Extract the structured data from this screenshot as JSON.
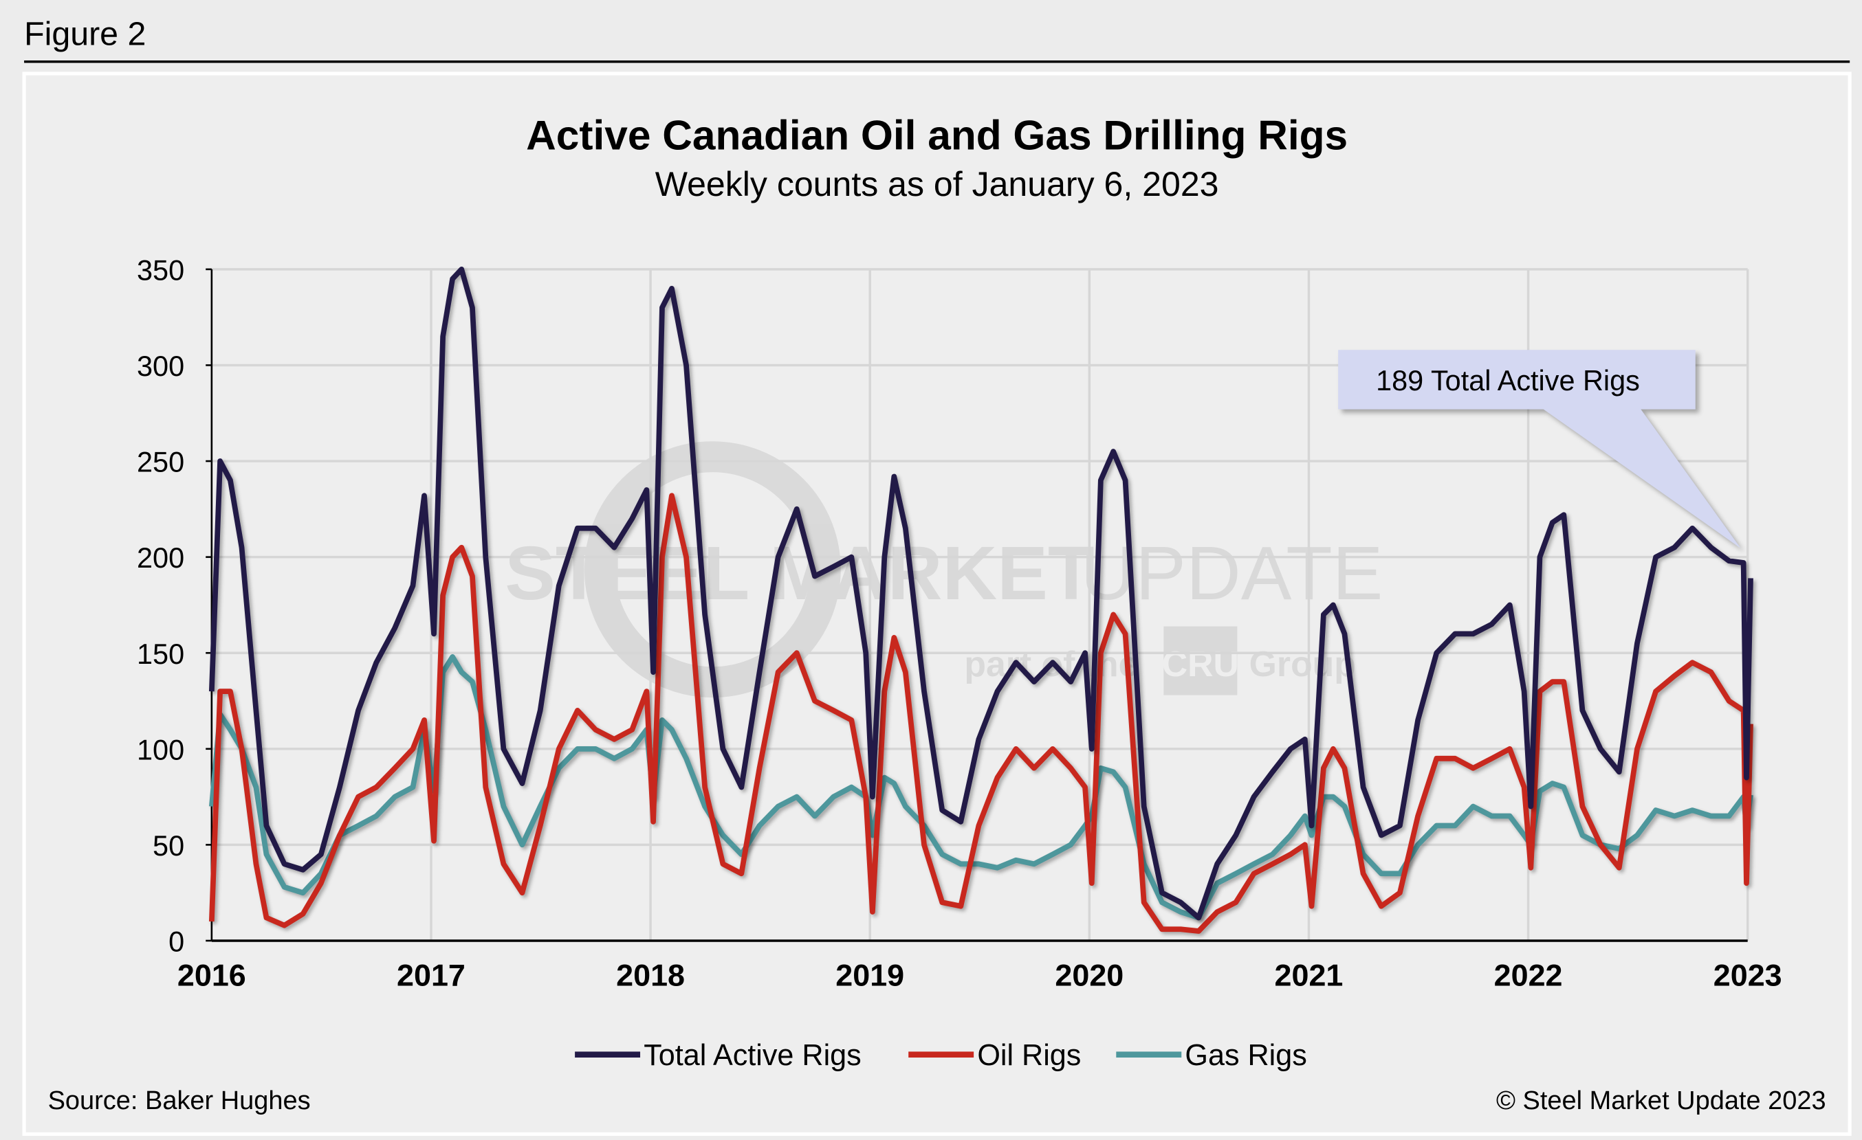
{
  "figure_label": "Figure 2",
  "source": "Source: Baker Hughes",
  "copyright": "© Steel Market Update 2023",
  "watermark": {
    "line1_bold": "STEEL MARKET",
    "line1_light": "UPDATE",
    "line2": "part of the",
    "badge": "CRU",
    "line2_end": "Group"
  },
  "chart_data": {
    "type": "line",
    "title": "Active Canadian Oil and Gas Drilling Rigs",
    "subtitle": "Weekly counts as of January 6, 2023",
    "xlabel": "",
    "ylabel": "",
    "ylim": [
      0,
      350
    ],
    "yticks": [
      "0",
      "50",
      "100",
      "150",
      "200",
      "250",
      "300",
      "350"
    ],
    "xlim": [
      "2016-01-01",
      "2023-01-06"
    ],
    "xticks": [
      "2016",
      "2017",
      "2018",
      "2019",
      "2020",
      "2021",
      "2022",
      "2023"
    ],
    "grid": true,
    "legend_position": "bottom",
    "annotation": "189 Total Active Rigs",
    "x": [
      "2016-01-01",
      "2016-01-15",
      "2016-02-01",
      "2016-02-20",
      "2016-03-15",
      "2016-04-01",
      "2016-05-01",
      "2016-06-01",
      "2016-07-01",
      "2016-08-01",
      "2016-09-01",
      "2016-10-01",
      "2016-11-01",
      "2016-12-01",
      "2016-12-20",
      "2017-01-05",
      "2017-01-20",
      "2017-02-05",
      "2017-02-20",
      "2017-03-10",
      "2017-04-01",
      "2017-05-01",
      "2017-06-01",
      "2017-07-01",
      "2017-08-01",
      "2017-09-01",
      "2017-10-01",
      "2017-11-01",
      "2017-12-01",
      "2017-12-25",
      "2018-01-05",
      "2018-01-20",
      "2018-02-05",
      "2018-03-01",
      "2018-04-01",
      "2018-05-01",
      "2018-06-01",
      "2018-07-01",
      "2018-08-01",
      "2018-09-01",
      "2018-10-01",
      "2018-11-01",
      "2018-12-01",
      "2018-12-25",
      "2019-01-05",
      "2019-01-25",
      "2019-02-10",
      "2019-03-01",
      "2019-04-01",
      "2019-05-01",
      "2019-06-01",
      "2019-07-01",
      "2019-08-01",
      "2019-09-01",
      "2019-10-01",
      "2019-11-01",
      "2019-12-01",
      "2019-12-25",
      "2020-01-05",
      "2020-01-20",
      "2020-02-10",
      "2020-03-01",
      "2020-04-01",
      "2020-05-01",
      "2020-06-01",
      "2020-07-01",
      "2020-08-01",
      "2020-09-01",
      "2020-10-01",
      "2020-11-01",
      "2020-12-01",
      "2020-12-25",
      "2021-01-05",
      "2021-01-25",
      "2021-02-10",
      "2021-03-01",
      "2021-04-01",
      "2021-05-01",
      "2021-06-01",
      "2021-07-01",
      "2021-08-01",
      "2021-09-01",
      "2021-10-01",
      "2021-11-01",
      "2021-12-01",
      "2021-12-25",
      "2022-01-05",
      "2022-01-20",
      "2022-02-10",
      "2022-03-01",
      "2022-04-01",
      "2022-05-01",
      "2022-06-01",
      "2022-07-01",
      "2022-08-01",
      "2022-09-01",
      "2022-10-01",
      "2022-11-01",
      "2022-12-01",
      "2022-12-25",
      "2022-12-30",
      "2023-01-06"
    ],
    "series": [
      {
        "name": "Total Active Rigs",
        "color": "#221a47",
        "values": [
          130,
          250,
          240,
          205,
          120,
          60,
          40,
          37,
          45,
          80,
          120,
          145,
          163,
          185,
          232,
          160,
          315,
          345,
          350,
          330,
          200,
          100,
          82,
          120,
          185,
          215,
          215,
          205,
          220,
          235,
          140,
          330,
          340,
          300,
          170,
          100,
          80,
          140,
          200,
          225,
          190,
          195,
          200,
          150,
          75,
          200,
          242,
          215,
          130,
          68,
          62,
          105,
          130,
          145,
          135,
          145,
          135,
          150,
          100,
          240,
          255,
          240,
          70,
          25,
          20,
          12,
          40,
          55,
          75,
          88,
          100,
          105,
          60,
          170,
          175,
          160,
          80,
          55,
          60,
          115,
          150,
          160,
          160,
          165,
          175,
          130,
          70,
          200,
          218,
          222,
          120,
          100,
          88,
          155,
          200,
          205,
          215,
          205,
          198,
          197,
          85,
          189
        ]
      },
      {
        "name": "Oil Rigs",
        "color": "#c8281e",
        "values": [
          10,
          130,
          130,
          100,
          40,
          12,
          8,
          14,
          30,
          55,
          75,
          80,
          90,
          100,
          115,
          52,
          180,
          200,
          205,
          190,
          80,
          40,
          25,
          60,
          100,
          120,
          110,
          105,
          110,
          130,
          62,
          200,
          232,
          200,
          80,
          40,
          35,
          90,
          140,
          150,
          125,
          120,
          115,
          75,
          15,
          130,
          158,
          140,
          50,
          20,
          18,
          60,
          85,
          100,
          90,
          100,
          90,
          80,
          30,
          150,
          170,
          160,
          20,
          6,
          6,
          5,
          15,
          20,
          35,
          40,
          45,
          50,
          18,
          90,
          100,
          90,
          35,
          18,
          25,
          65,
          95,
          95,
          90,
          95,
          100,
          80,
          38,
          130,
          135,
          135,
          70,
          50,
          38,
          100,
          130,
          138,
          145,
          140,
          125,
          120,
          30,
          113
        ]
      },
      {
        "name": "Gas Rigs",
        "color": "#4e979c",
        "values": [
          70,
          118,
          110,
          100,
          80,
          45,
          28,
          25,
          35,
          55,
          60,
          65,
          75,
          80,
          110,
          78,
          140,
          148,
          140,
          135,
          110,
          70,
          50,
          70,
          90,
          100,
          100,
          95,
          100,
          110,
          75,
          115,
          110,
          95,
          70,
          55,
          45,
          60,
          70,
          75,
          65,
          75,
          80,
          75,
          55,
          85,
          82,
          70,
          60,
          45,
          40,
          40,
          38,
          42,
          40,
          45,
          50,
          60,
          65,
          90,
          88,
          80,
          40,
          20,
          15,
          12,
          30,
          35,
          40,
          45,
          55,
          65,
          55,
          75,
          75,
          70,
          45,
          35,
          35,
          50,
          60,
          60,
          70,
          65,
          65,
          55,
          50,
          78,
          82,
          80,
          55,
          50,
          48,
          55,
          68,
          65,
          68,
          65,
          65,
          75,
          60,
          76
        ]
      }
    ]
  }
}
